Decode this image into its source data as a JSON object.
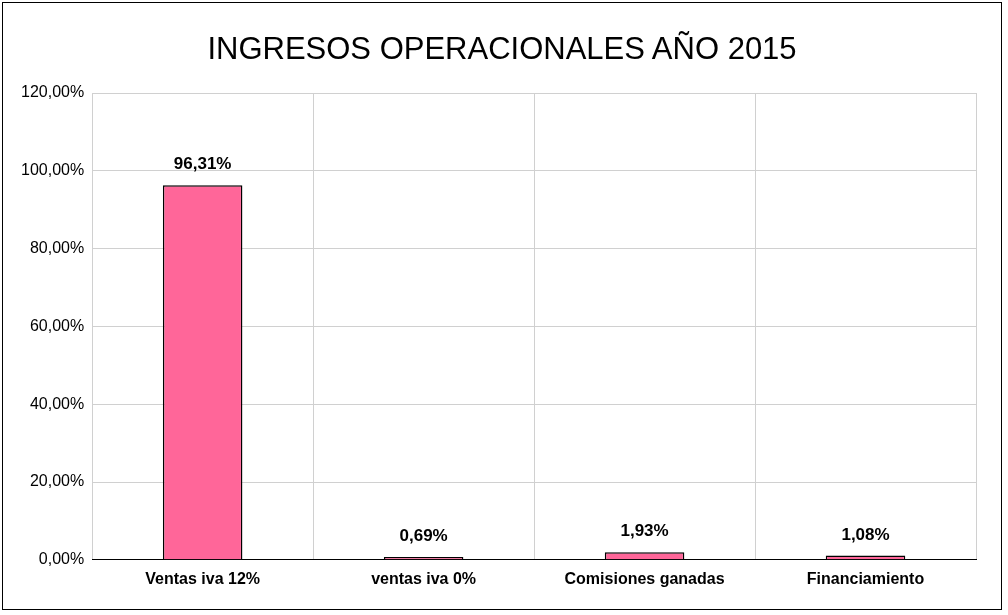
{
  "chart_data": {
    "type": "bar",
    "title": "INGRESOS OPERACIONALES AÑO 2015",
    "categories": [
      "Ventas iva 12%",
      "ventas iva 0%",
      "Comisiones ganadas",
      "Financiamiento"
    ],
    "values": [
      96.31,
      0.69,
      1.93,
      1.08
    ],
    "value_labels": [
      "96,31%",
      "0,69%",
      "1,93%",
      "1,08%"
    ],
    "color": "#ff6699",
    "ylim": [
      0,
      120
    ],
    "yticks": [
      {
        "value": 0,
        "label": "0,00%"
      },
      {
        "value": 20,
        "label": "20,00%"
      },
      {
        "value": 40,
        "label": "40,00%"
      },
      {
        "value": 60,
        "label": "60,00%"
      },
      {
        "value": 80,
        "label": "80,00%"
      },
      {
        "value": 100,
        "label": "100,00%"
      },
      {
        "value": 120,
        "label": "120,00%"
      }
    ],
    "grid": true,
    "legend": false
  }
}
